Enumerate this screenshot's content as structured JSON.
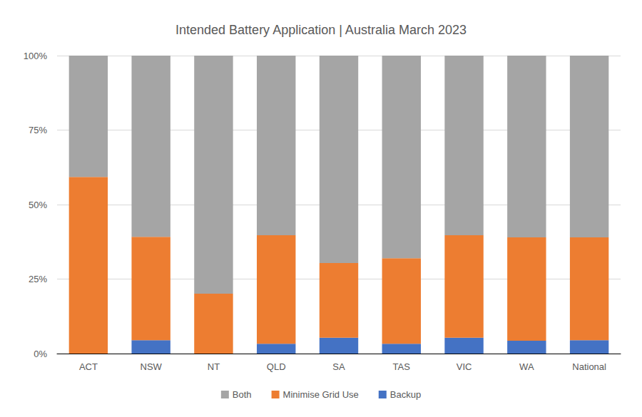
{
  "chart_data": {
    "type": "bar",
    "title": "Intended Battery Application | Australia March 2023",
    "categories": [
      "ACT",
      "NSW",
      "NT",
      "QLD",
      "SA",
      "TAS",
      "VIC",
      "WA",
      "National"
    ],
    "series": [
      {
        "name": "Backup",
        "color": "#4472c4",
        "values": [
          0,
          4.5,
          0,
          3.3,
          5.3,
          3.3,
          5.3,
          4.3,
          4.5
        ]
      },
      {
        "name": "Minimise Grid Use",
        "color": "#ed7d31",
        "values": [
          59.3,
          34.7,
          20.1,
          36.4,
          25.1,
          28.7,
          34.4,
          34.7,
          34.5
        ]
      },
      {
        "name": "Both",
        "color": "#a5a5a5",
        "values": [
          40.7,
          60.8,
          79.9,
          60.3,
          69.6,
          68,
          60.3,
          61,
          61
        ]
      }
    ],
    "stacked": true,
    "ylim": [
      0,
      100
    ],
    "yticks": [
      {
        "value": 0,
        "label": "0%"
      },
      {
        "value": 25,
        "label": "25%"
      },
      {
        "value": 50,
        "label": "50%"
      },
      {
        "value": 75,
        "label": "75%"
      },
      {
        "value": 100,
        "label": "100%"
      }
    ],
    "grid": true,
    "legend": "bottom"
  }
}
